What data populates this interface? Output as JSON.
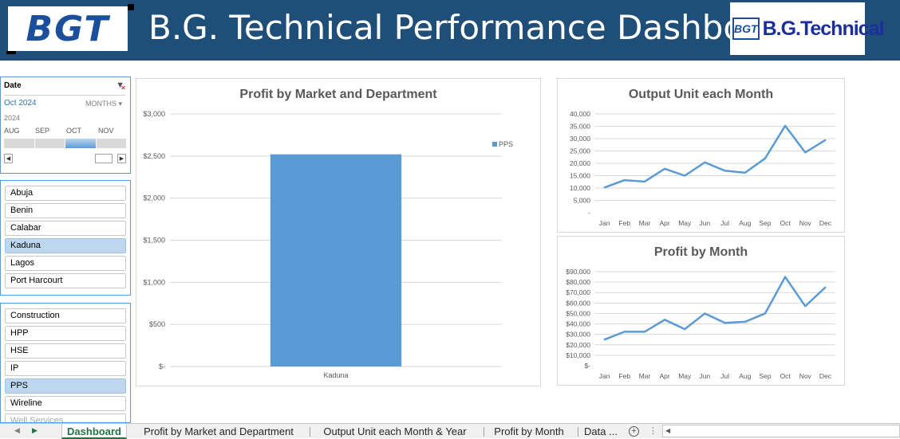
{
  "header": {
    "logo_left_text": "BGT",
    "title": "B.G. Technical Performance Dashboard",
    "logo_right_mark": "BGT",
    "logo_right_text": "B.G.Technical"
  },
  "timeline": {
    "header": "Date",
    "selected_period": "Oct 2024",
    "time_level": "MONTHS",
    "year": "2024",
    "months": [
      "AUG",
      "SEP",
      "OCT",
      "NOV"
    ],
    "selected_index": 2
  },
  "market_slicer": {
    "items": [
      {
        "label": "Abuja",
        "selected": false
      },
      {
        "label": "Benin",
        "selected": false
      },
      {
        "label": "Calabar",
        "selected": false
      },
      {
        "label": "Kaduna",
        "selected": true
      },
      {
        "label": "Lagos",
        "selected": false
      },
      {
        "label": "Port Harcourt",
        "selected": false
      }
    ]
  },
  "department_slicer": {
    "items": [
      {
        "label": "Construction",
        "selected": false
      },
      {
        "label": "HPP",
        "selected": false
      },
      {
        "label": "HSE",
        "selected": false
      },
      {
        "label": "IP",
        "selected": false
      },
      {
        "label": "PPS",
        "selected": true
      },
      {
        "label": "Wireline",
        "selected": false
      },
      {
        "label": "Well Services",
        "selected": false
      }
    ]
  },
  "chart_data": [
    {
      "type": "bar",
      "title": "Profit by Market and Department",
      "categories": [
        "Kaduna"
      ],
      "series": [
        {
          "name": "PPS",
          "values": [
            2520
          ]
        }
      ],
      "ylim": [
        0,
        3000
      ],
      "yticks": [
        0,
        500,
        1000,
        1500,
        2000,
        2500,
        3000
      ],
      "ytick_labels": [
        "$-",
        "$500",
        "$1,000",
        "$1,500",
        "$2,000",
        "$2,500",
        "$3,000"
      ],
      "legend": "right",
      "grid": true,
      "color": "#5b9bd5"
    },
    {
      "type": "line",
      "title": "Output Unit each Month",
      "categories": [
        "Jan",
        "Feb",
        "Mar",
        "Apr",
        "May",
        "Jun",
        "Jul",
        "Aug",
        "Sep",
        "Oct",
        "Nov",
        "Dec"
      ],
      "values": [
        10200,
        13200,
        12600,
        17800,
        15000,
        20400,
        17000,
        16200,
        22000,
        35200,
        24400,
        29400
      ],
      "ylim": [
        0,
        40000
      ],
      "yticks": [
        0,
        5000,
        10000,
        15000,
        20000,
        25000,
        30000,
        35000,
        40000
      ],
      "ytick_labels": [
        "-",
        "5,000",
        "10,000",
        "15,000",
        "20,000",
        "25,000",
        "30,000",
        "35,000",
        "40,000"
      ],
      "grid": true,
      "color": "#5b9bd5"
    },
    {
      "type": "line",
      "title": "Profit by Month",
      "categories": [
        "Jan",
        "Feb",
        "Mar",
        "Apr",
        "May",
        "Jun",
        "Jul",
        "Aug",
        "Sep",
        "Oct",
        "Nov",
        "Dec"
      ],
      "values": [
        25000,
        32500,
        32500,
        44000,
        35000,
        50000,
        41000,
        42000,
        50000,
        85000,
        57000,
        75000
      ],
      "ylim": [
        0,
        90000
      ],
      "yticks": [
        0,
        10000,
        20000,
        30000,
        40000,
        50000,
        60000,
        70000,
        80000,
        90000
      ],
      "ytick_labels": [
        "$-",
        "$10,000",
        "$20,000",
        "$30,000",
        "$40,000",
        "$50,000",
        "$60,000",
        "$70,000",
        "$80,000",
        "$90,000"
      ],
      "grid": true,
      "color": "#5b9bd5"
    }
  ],
  "tabs": {
    "items": [
      "Dashboard",
      "Profit by Market and Department",
      "Output Unit each Month & Year",
      "Profit by Month",
      "Data ..."
    ],
    "active_index": 0
  }
}
